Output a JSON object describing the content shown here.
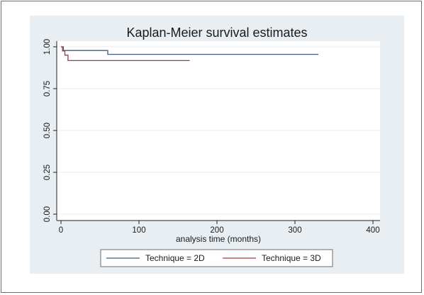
{
  "chart_data": {
    "type": "line",
    "title": "Kaplan-Meier survival estimates",
    "xlabel": "analysis time (months)",
    "ylabel": "",
    "xlim": [
      0,
      400
    ],
    "ylim": [
      0,
      1
    ],
    "xticks": [
      "0",
      "100",
      "200",
      "300",
      "400"
    ],
    "yticks": [
      "0.00",
      "0.25",
      "0.50",
      "0.75",
      "1.00"
    ],
    "xtick_values": [
      0,
      100,
      200,
      300,
      400
    ],
    "ytick_values": [
      0,
      0.25,
      0.5,
      0.75,
      1.0
    ],
    "grid": "horizontal",
    "legend_position": "bottom",
    "step": true,
    "series": [
      {
        "name": "Technique = 2D",
        "color": "#3b5b7f",
        "x": [
          0,
          3,
          60,
          330
        ],
        "y": [
          1.0,
          0.978,
          0.955,
          0.955
        ]
      },
      {
        "name": "Technique = 3D",
        "color": "#a33a42",
        "x": [
          0,
          2,
          5,
          9,
          165
        ],
        "y": [
          1.0,
          0.975,
          0.95,
          0.918,
          0.918
        ]
      }
    ]
  }
}
